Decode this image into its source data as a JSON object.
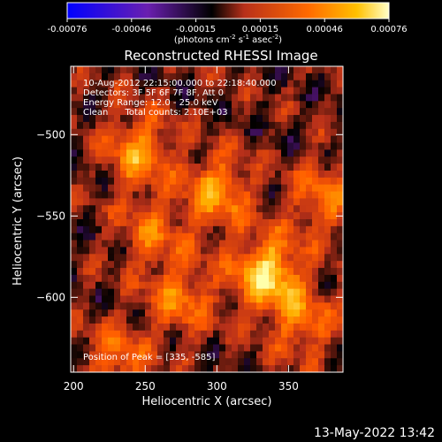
{
  "chart_data": {
    "type": "heatmap",
    "title": "Reconstructed RHESSI Image",
    "xlabel": "Heliocentric X (arcsec)",
    "ylabel": "Heliocentric Y (arcsec)",
    "x_ticks": [
      "200",
      "250",
      "300",
      "350"
    ],
    "y_ticks": [
      "-500",
      "-550",
      "-600"
    ],
    "xlim": [
      198,
      388
    ],
    "ylim": [
      -646,
      -458
    ],
    "colorbar": {
      "ticks": [
        "-0.00076",
        "-0.00046",
        "-0.00015",
        "0.00015",
        "0.00046",
        "0.00076"
      ],
      "unit_label": "(photons cm-2 s-1 asec-2)",
      "range": [
        -0.00076,
        0.00076
      ]
    },
    "info_lines": [
      "10-Aug-2012 22:15:00.000 to 22:18:40.000",
      "Detectors: 3F 5F 6F 7F 8F, Att 0",
      "Energy Range: 12.0 - 25.0 keV",
      "Clean      Total counts: 2.10E+03"
    ],
    "peak_text": "Position of Peak = [335, -585]",
    "grid": false,
    "colormap": [
      "#0000ff",
      "#7b1fb0",
      "#000000",
      "#b8301a",
      "#ff5a00",
      "#ffb000",
      "#ffffaa"
    ],
    "sources": [
      {
        "x": 335,
        "y": -585,
        "value": 0.00076
      },
      {
        "x": 300,
        "y": -535,
        "value": 0.00055
      },
      {
        "x": 275,
        "y": -600,
        "value": 0.00045
      },
      {
        "x": 245,
        "y": -510,
        "value": 0.0005
      },
      {
        "x": 230,
        "y": -640,
        "value": 0.0004
      },
      {
        "x": 375,
        "y": -540,
        "value": 0.00042
      },
      {
        "x": 255,
        "y": -560,
        "value": 0.00035
      },
      {
        "x": 360,
        "y": -615,
        "value": 0.0004
      }
    ]
  },
  "timestamp": "13-May-2022 13:42"
}
